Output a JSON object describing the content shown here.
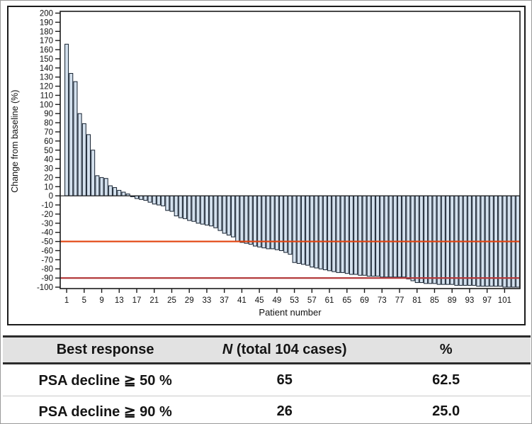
{
  "chart_data": {
    "type": "bar",
    "title": "",
    "xlabel": "Patient number",
    "ylabel": "Change from baseline (%)",
    "ylim": [
      -100,
      200
    ],
    "xlim": [
      1,
      104
    ],
    "grid": false,
    "legend": null,
    "y_ticks": [
      200,
      190,
      180,
      170,
      160,
      150,
      140,
      130,
      120,
      110,
      100,
      90,
      80,
      70,
      60,
      50,
      40,
      30,
      20,
      10,
      0,
      -10,
      -20,
      -30,
      -40,
      -50,
      -60,
      -70,
      -80,
      -90,
      -100
    ],
    "x_ticks": [
      1,
      5,
      9,
      13,
      17,
      21,
      25,
      29,
      33,
      37,
      41,
      45,
      49,
      53,
      57,
      61,
      65,
      69,
      73,
      77,
      81,
      85,
      89,
      93,
      97,
      101
    ],
    "n_bars": 104,
    "values": [
      166,
      134,
      125,
      90,
      79,
      67,
      50,
      22,
      20,
      19,
      11,
      9,
      6,
      4,
      2,
      -1,
      -3,
      -4,
      -5,
      -7,
      -9,
      -10,
      -11,
      -16,
      -17,
      -22,
      -24,
      -25,
      -27,
      -28,
      -30,
      -31,
      -32,
      -33,
      -35,
      -38,
      -41,
      -43,
      -45,
      -50,
      -51,
      -52,
      -53,
      -55,
      -56,
      -57,
      -58,
      -58,
      -59,
      -60,
      -62,
      -64,
      -73,
      -74,
      -75,
      -76,
      -78,
      -79,
      -80,
      -81,
      -82,
      -83,
      -84,
      -84,
      -85,
      -86,
      -86,
      -87,
      -87,
      -88,
      -88,
      -88,
      -89,
      -89,
      -89,
      -89,
      -89,
      -89,
      -91,
      -93,
      -95,
      -95,
      -96,
      -96,
      -96,
      -97,
      -97,
      -97,
      -97,
      -98,
      -98,
      -98,
      -98,
      -98,
      -99,
      -99,
      -99,
      -99,
      -99,
      -99,
      -100,
      -100,
      -100,
      -100
    ],
    "reference_lines": [
      {
        "y": -50,
        "color": "#e2430f",
        "meaning": "50% decline threshold"
      },
      {
        "y": -90,
        "color": "#b43b3d",
        "meaning": "90% decline threshold"
      }
    ],
    "bar_fill": "#d4e1ee",
    "bar_stroke": "#14202f",
    "axis_color": "#1b1b1b"
  },
  "table": {
    "header": {
      "col1": "Best response",
      "col2_italic": "N",
      "col2_rest": " (total 104 cases)",
      "col3": "%"
    },
    "rows": [
      {
        "label": "PSA decline ≧ 50 %",
        "n": "65",
        "pct": "62.5"
      },
      {
        "label": "PSA decline ≧ 90 %",
        "n": "26",
        "pct": "25.0"
      }
    ]
  }
}
